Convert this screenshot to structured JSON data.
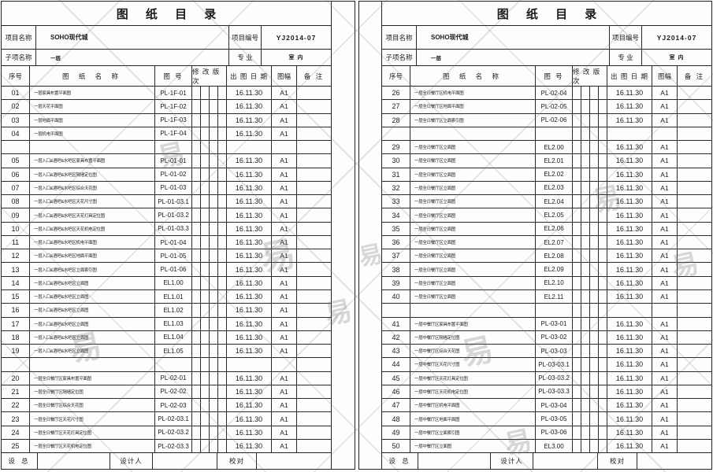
{
  "title": "图 纸 目 录",
  "header": {
    "project_name_label": "项目名称",
    "project_name": "SOHO现代城",
    "project_no_label": "项目编号",
    "project_no": "YJ2014-07",
    "subitem_label": "子项名称",
    "subitem": "一层",
    "specialty_label": "专  业",
    "specialty": "室 内"
  },
  "columns": {
    "no": "序号",
    "name": "图 纸 名 称",
    "dwg_no": "图 号",
    "revision": "修 改 版 次",
    "date": "出 图 日 期",
    "size": "图幅",
    "remark": "备 注"
  },
  "footer": {
    "chief_label": "设  总",
    "designer_label": "设计人",
    "checker_label": "校对"
  },
  "watermark_glyph": "易",
  "sheets": [
    {
      "rows": [
        [
          "01",
          "一层家具布置平面图",
          "PL-1F-01",
          "16.11.30",
          "A1"
        ],
        [
          "02",
          "一层天花平面图",
          "PL-1F-02",
          "16.11.30",
          "A1"
        ],
        [
          "03",
          "一层地面平面图",
          "PL-1F-03",
          "16.11.30",
          "A1"
        ],
        [
          "04",
          "一层机电平面图",
          "PL-1F-04",
          "16.11.30",
          "A1"
        ],
        null,
        [
          "05",
          "一层入口&酒吧&水吧区家具布置平面图",
          "PL-01-01",
          "16.11.30",
          "A1"
        ],
        [
          "06",
          "一层入口&酒吧&水吧区隔墙定位图",
          "PL-01-02",
          "16.11.30",
          "A1"
        ],
        [
          "07",
          "一层入口&酒吧&水吧区综合天花图",
          "PL-01-03",
          "16.11.30",
          "A1"
        ],
        [
          "08",
          "一层入口&酒吧&水吧区天花尺寸图",
          "PL-01-03.1",
          "16.11.30",
          "A1"
        ],
        [
          "09",
          "一层入口&酒吧&水吧区天花灯具定位图",
          "PL-01-03.2",
          "16.11.30",
          "A1"
        ],
        [
          "10",
          "一层入口&酒吧&水吧区天花机电定位图",
          "PL-01-03.3",
          "16.11.30",
          "A1"
        ],
        [
          "11",
          "一层入口&酒吧&水吧区机电平面图",
          "PL-01-04",
          "16.11.30",
          "A1"
        ],
        [
          "12",
          "一层入口&酒吧&水吧区地面平面图",
          "PL-01-05",
          "16.11.30",
          "A1"
        ],
        [
          "13",
          "一层入口&酒吧&水吧区立面索引图",
          "PL-01-06",
          "16.11.30",
          "A1"
        ],
        [
          "14",
          "一层入口&酒吧&水吧区立面图",
          "EL1.00",
          "16.11.30",
          "A1"
        ],
        [
          "15",
          "一层入口&酒吧&水吧区立面图",
          "EL1.01",
          "16.11.30",
          "A1"
        ],
        [
          "16",
          "一层入口&酒吧&水吧区立面图",
          "EL1.02",
          "16.11.30",
          "A1"
        ],
        [
          "17",
          "一层入口&酒吧&水吧区立面图",
          "EL1.03",
          "16.11.30",
          "A1"
        ],
        [
          "18",
          "一层入口&酒吧&水吧区立面图",
          "EL1.04",
          "16.11.30",
          "A1"
        ],
        [
          "19",
          "一层入口&酒吧&水吧区立面图",
          "EL1.05",
          "16.11.30",
          "A1"
        ],
        null,
        [
          "20",
          "一层全日餐厅区家具布置平面图",
          "PL-02-01",
          "16.11.30",
          "A1"
        ],
        [
          "21",
          "一层全日餐厅区隔墙定位图",
          "PL-02-02",
          "16.11.30",
          "A1"
        ],
        [
          "22",
          "一层全日餐厅区综合天花图",
          "PL-02-03",
          "16.11.30",
          "A1"
        ],
        [
          "23",
          "一层全日餐厅区天花尺寸图",
          "PL-02-03.1",
          "16.11.30",
          "A1"
        ],
        [
          "24",
          "一层全日餐厅区天花灯具定位图",
          "PL-02-03.2",
          "16.11.30",
          "A1"
        ],
        [
          "25",
          "一层全日餐厅区天花机电定位图",
          "PL-02-03.3",
          "16.11.30",
          "A1"
        ]
      ]
    },
    {
      "rows": [
        [
          "26",
          "一层全日餐厅区机电平面图",
          "PL-02-04",
          "16.11.30",
          "A1"
        ],
        [
          "27",
          "一层全日餐厅区地面平面图",
          "PL-02-05",
          "16.11.30",
          "A1"
        ],
        [
          "28",
          "一层全日餐厅区立面索引图",
          "PL-02-06",
          "16.11.30",
          "A1"
        ],
        null,
        [
          "29",
          "一层全日餐厅区立面图",
          "EL2.00",
          "16.11.30",
          "A1"
        ],
        [
          "30",
          "一层全日餐厅区立面图",
          "EL2.01",
          "16.11.30",
          "A1"
        ],
        [
          "31",
          "一层全日餐厅区立面图",
          "EL2.02",
          "16.11.30",
          "A1"
        ],
        [
          "32",
          "一层全日餐厅区立面图",
          "EL2.03",
          "16.11.30",
          "A1"
        ],
        [
          "33",
          "一层全日餐厅区立面图",
          "EL2.04",
          "16.11.30",
          "A1"
        ],
        [
          "34",
          "一层全日餐厅区立面图",
          "EL2.05",
          "16.11.30",
          "A1"
        ],
        [
          "35",
          "一层全日餐厅区立面图",
          "EL2.06",
          "16.11.30",
          "A1"
        ],
        [
          "36",
          "一层全日餐厅区立面图",
          "EL2.07",
          "16.11.30",
          "A1"
        ],
        [
          "37",
          "一层全日餐厅区立面图",
          "EL2.08",
          "16.11.30",
          "A1"
        ],
        [
          "38",
          "一层全日餐厅区立面图",
          "EL2.09",
          "16.11.30",
          "A1"
        ],
        [
          "39",
          "一层全日餐厅区立面图",
          "EL2.10",
          "16.11.30",
          "A1"
        ],
        [
          "40",
          "一层全日餐厅区立面图",
          "EL2.11",
          "16.11.30",
          "A1"
        ],
        null,
        [
          "41",
          "一层中餐厅区家具布置平面图",
          "PL-03-01",
          "16.11.30",
          "A1"
        ],
        [
          "42",
          "一层中餐厅区隔墙定位图",
          "PL-03-02",
          "16.11.30",
          "A1"
        ],
        [
          "43",
          "一层中餐厅区综合天花图",
          "PL-03-03",
          "16.11.30",
          "A1"
        ],
        [
          "44",
          "一层中餐厅区天花尺寸图",
          "PL-03-03.1",
          "16.11.30",
          "A1"
        ],
        [
          "45",
          "一层中餐厅区天花灯具定位图",
          "PL-03-03.2",
          "16.11.30",
          "A1"
        ],
        [
          "46",
          "一层中餐厅区天花机电定位图",
          "PL-03-03.3",
          "16.11.30",
          "A1"
        ],
        [
          "47",
          "一层中餐厅区机电平面图",
          "PL-03-04",
          "16.11.30",
          "A1"
        ],
        [
          "48",
          "一层中餐厅区地面平面图",
          "PL-03-05",
          "16.11.30",
          "A1"
        ],
        [
          "49",
          "一层中餐厅区立面索引图",
          "PL-03-06",
          "16.11.30",
          "A1"
        ],
        [
          "50",
          "一层中餐厅区立面图",
          "EL3.00",
          "16.11.30",
          "A1"
        ]
      ]
    }
  ]
}
